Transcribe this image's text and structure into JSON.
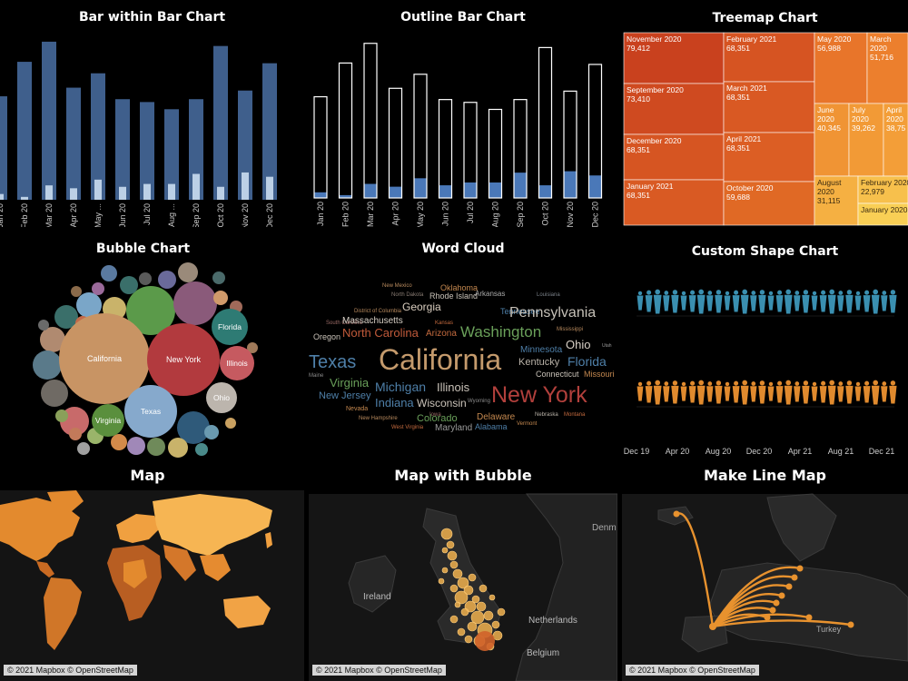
{
  "bar_in_bar": {
    "title": "Bar within Bar Chart",
    "chart_data": {
      "type": "bar",
      "categories": [
        "Jan 20",
        "Feb 20",
        "Mar 20",
        "Apr 20",
        "May ...",
        "Jun 20",
        "Jul 20",
        "Aug ...",
        "Sep 20",
        "Oct 20",
        "Nov 20",
        "Dec 20"
      ],
      "series": [
        {
          "values": [
            72,
            96,
            110,
            78,
            88,
            70,
            68,
            63,
            70,
            107,
            76,
            95
          ]
        },
        {
          "values": [
            4,
            2,
            10,
            8,
            14,
            9,
            11,
            11,
            18,
            9,
            19,
            16
          ]
        }
      ],
      "ylim": [
        0,
        115
      ],
      "colors": {
        "outer": "#3f5f8c",
        "inner": "#bcd0e6"
      }
    }
  },
  "outline_bar": {
    "title": "Outline Bar Chart",
    "chart_data": {
      "type": "bar",
      "categories": [
        "Jan 20",
        "Feb 20",
        "Mar 20",
        "Apr 20",
        "May 20",
        "Jun 20",
        "Jul 20",
        "Aug 20",
        "Sep 20",
        "Oct 20",
        "Nov 20",
        "Dec 20"
      ],
      "series": [
        {
          "values": [
            72,
            96,
            110,
            78,
            88,
            70,
            68,
            63,
            70,
            107,
            76,
            95
          ]
        },
        {
          "values": [
            4,
            2,
            10,
            8,
            14,
            9,
            11,
            11,
            18,
            9,
            19,
            16
          ]
        }
      ],
      "ylim": [
        0,
        115
      ],
      "colors": {
        "outline": "#ffffff",
        "fill": "#4a78b8"
      }
    }
  },
  "treemap": {
    "title": "Treemap Chart",
    "chart_data": {
      "type": "treemap",
      "cells": [
        {
          "label": "November 2020",
          "value": "79,412",
          "color": "#c9411e"
        },
        {
          "label": "September 2020",
          "value": "73,410",
          "color": "#cf4a20"
        },
        {
          "label": "December 2020",
          "value": "68,351",
          "color": "#d65522"
        },
        {
          "label": "January 2021",
          "value": "68,351",
          "color": "#d95a23"
        },
        {
          "label": "February 2021",
          "value": "68,351",
          "color": "#d65422"
        },
        {
          "label": "March 2021",
          "value": "68,351",
          "color": "#d95923"
        },
        {
          "label": "April 2021",
          "value": "68,351",
          "color": "#dc5e24"
        },
        {
          "label": "October 2020",
          "value": "59,688",
          "color": "#e06925"
        },
        {
          "label": "May 2020",
          "value": "56,988",
          "color": "#e8752a"
        },
        {
          "label": "March 2020",
          "value": "51,716",
          "color": "#ec7f2d"
        },
        {
          "label": "June 2020",
          "value": "40,345",
          "color": "#f09434"
        },
        {
          "label": "July 2020",
          "value": "39,262",
          "color": "#f29a36"
        },
        {
          "label": "April 2020",
          "value": "38,75",
          "color": "#f39e38"
        },
        {
          "label": "August 2020",
          "value": "31,115",
          "color": "#f5b042"
        },
        {
          "label": "February 2020",
          "value": "22,979",
          "color": "#f7c04c"
        },
        {
          "label": "January 2020",
          "value": "",
          "color": "#f9cf55"
        }
      ]
    }
  },
  "bubble": {
    "title": "Bubble Chart",
    "chart_data": {
      "type": "bubble",
      "labeled": [
        {
          "label": "California",
          "value": 100,
          "color": "#c89464"
        },
        {
          "label": "New York",
          "value": 80,
          "color": "#b23a3e"
        },
        {
          "label": "Texas",
          "value": 46,
          "color": "#86a9cc"
        },
        {
          "label": "Florida",
          "value": 18,
          "color": "#2e7b74"
        },
        {
          "label": "Illinois",
          "value": 14,
          "color": "#c65a60"
        },
        {
          "label": "Ohio",
          "value": 11,
          "color": "#bcb5ad"
        },
        {
          "label": "Virginia",
          "value": 12,
          "color": "#5a8f3d"
        }
      ]
    }
  },
  "word_cloud": {
    "title": "Word Cloud",
    "chart_data": {
      "type": "word_cloud",
      "words": [
        {
          "text": "New Mexico",
          "color": "#b88a5e"
        },
        {
          "text": "Oklahoma",
          "color": "#c4884f"
        },
        {
          "text": "North Dakota",
          "color": "#8a7d74"
        },
        {
          "text": "Rhode Island",
          "color": "#c9c2b8"
        },
        {
          "text": "Arkansas",
          "color": "#a9a9a9"
        },
        {
          "text": "Louisiana",
          "color": "#7a8088"
        },
        {
          "text": "District of Columbia",
          "color": "#b88a5e"
        },
        {
          "text": "Georgia",
          "color": "#d9cdbf"
        },
        {
          "text": "Tennessee",
          "color": "#4e7fa8"
        },
        {
          "text": "Pennsylvania",
          "color": "#c5c0b7"
        },
        {
          "text": "South Carolina",
          "color": "#9a6a66"
        },
        {
          "text": "Massachusetts",
          "color": "#d8d0c6"
        },
        {
          "text": "Kansas",
          "color": "#c46a3e"
        },
        {
          "text": "Mississippi",
          "color": "#b88a5e"
        },
        {
          "text": "Oregon",
          "color": "#c9c2b8"
        },
        {
          "text": "North Carolina",
          "color": "#c05a3a"
        },
        {
          "text": "Arizona",
          "color": "#c46a3e"
        },
        {
          "text": "Washington",
          "color": "#6aa05a"
        },
        {
          "text": "Minnesota",
          "color": "#4e7fa8"
        },
        {
          "text": "Ohio",
          "color": "#d8d0c6"
        },
        {
          "text": "Utah",
          "color": "#9a9a9a"
        },
        {
          "text": "Texas",
          "color": "#4e7fa8"
        },
        {
          "text": "California",
          "color": "#c49a6c"
        },
        {
          "text": "Kentucky",
          "color": "#b9b2a8"
        },
        {
          "text": "Florida",
          "color": "#4e7fa8"
        },
        {
          "text": "Maine",
          "color": "#8a8a8a"
        },
        {
          "text": "Virginia",
          "color": "#6aa05a"
        },
        {
          "text": "Connecticut",
          "color": "#c9c2b8"
        },
        {
          "text": "Missouri",
          "color": "#c4884f"
        },
        {
          "text": "Michigan",
          "color": "#4e7fa8"
        },
        {
          "text": "Illinois",
          "color": "#c9c2b8"
        },
        {
          "text": "New York",
          "color": "#b2403c"
        },
        {
          "text": "New Jersey",
          "color": "#4e7fa8"
        },
        {
          "text": "Indiana",
          "color": "#4e7fa8"
        },
        {
          "text": "Wisconsin",
          "color": "#c9c2b8"
        },
        {
          "text": "Wyoming",
          "color": "#8a8a8a"
        },
        {
          "text": "Nevada",
          "color": "#c4884f"
        },
        {
          "text": "Iowa",
          "color": "#9a6a66"
        },
        {
          "text": "Colorado",
          "color": "#6aa05a"
        },
        {
          "text": "Delaware",
          "color": "#c4884f"
        },
        {
          "text": "Nebraska",
          "color": "#b9b2a8"
        },
        {
          "text": "Montana",
          "color": "#c46a3e"
        },
        {
          "text": "New Hampshire",
          "color": "#b88a5e"
        },
        {
          "text": "West Virginia",
          "color": "#c46a3e"
        },
        {
          "text": "Maryland",
          "color": "#9a9a9a"
        },
        {
          "text": "Alabama",
          "color": "#4e7fa8"
        },
        {
          "text": "Vermont",
          "color": "#c4884f"
        }
      ]
    }
  },
  "custom_shape": {
    "title": "Custom Shape Chart",
    "chart_data": {
      "type": "pictogram",
      "x_ticks": [
        "Dec 19",
        "Apr 20",
        "Aug 20",
        "Dec 20",
        "Apr 21",
        "Aug 21",
        "Dec 21"
      ],
      "series": [
        {
          "color": "#3a8fb0",
          "count": 30
        },
        {
          "color": "#e08a2e",
          "count": 30
        }
      ]
    }
  },
  "map": {
    "title": "Map",
    "credit": "© 2021 Mapbox © OpenStreetMap"
  },
  "map_bubble": {
    "title": "Map with Bubble",
    "labels": {
      "denmark": "Denm",
      "ireland": "Ireland",
      "netherlands": "Netherlands",
      "belgium": "Belgium"
    },
    "credit": "© 2021 Mapbox © OpenStreetMap"
  },
  "line_map": {
    "title": "Make Line Map",
    "labels": {
      "turkey": "Turkey"
    },
    "credit": "© 2021 Mapbox © OpenStreetMap"
  }
}
